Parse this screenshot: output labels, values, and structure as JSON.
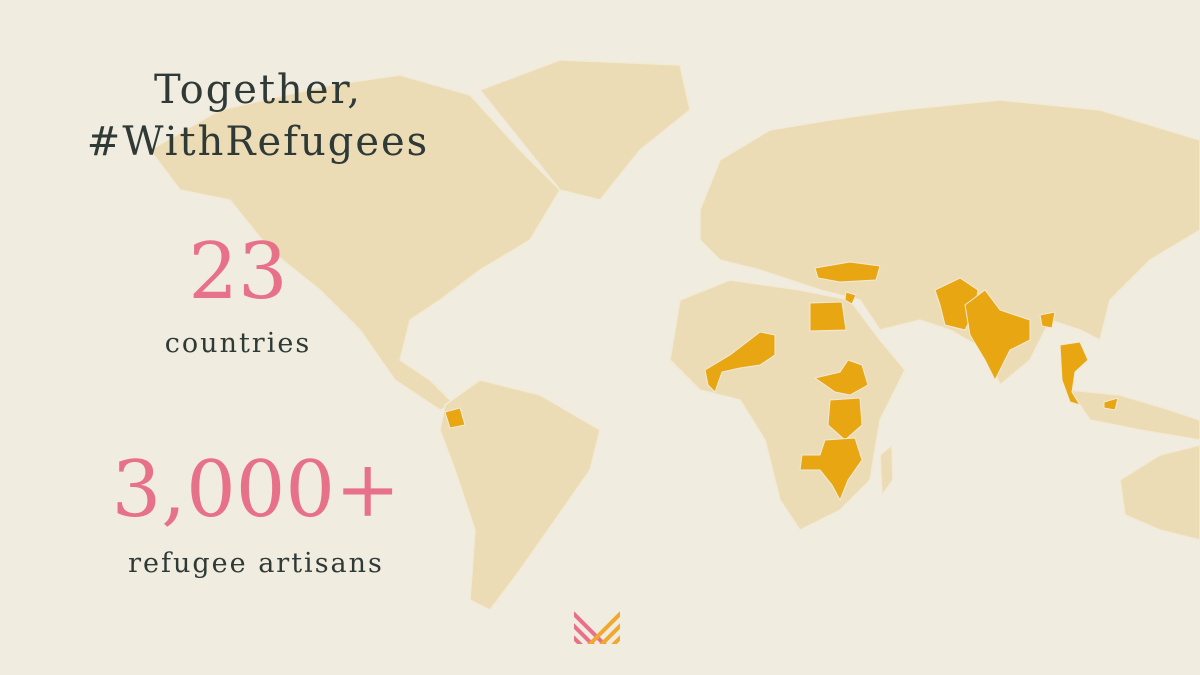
{
  "header": {
    "title_line1": "Together,",
    "title_line2": "#WithRefugees"
  },
  "stats": [
    {
      "number": "23",
      "label": "countries"
    },
    {
      "number": "3,000+",
      "label": "refugee artisans"
    }
  ]
}
